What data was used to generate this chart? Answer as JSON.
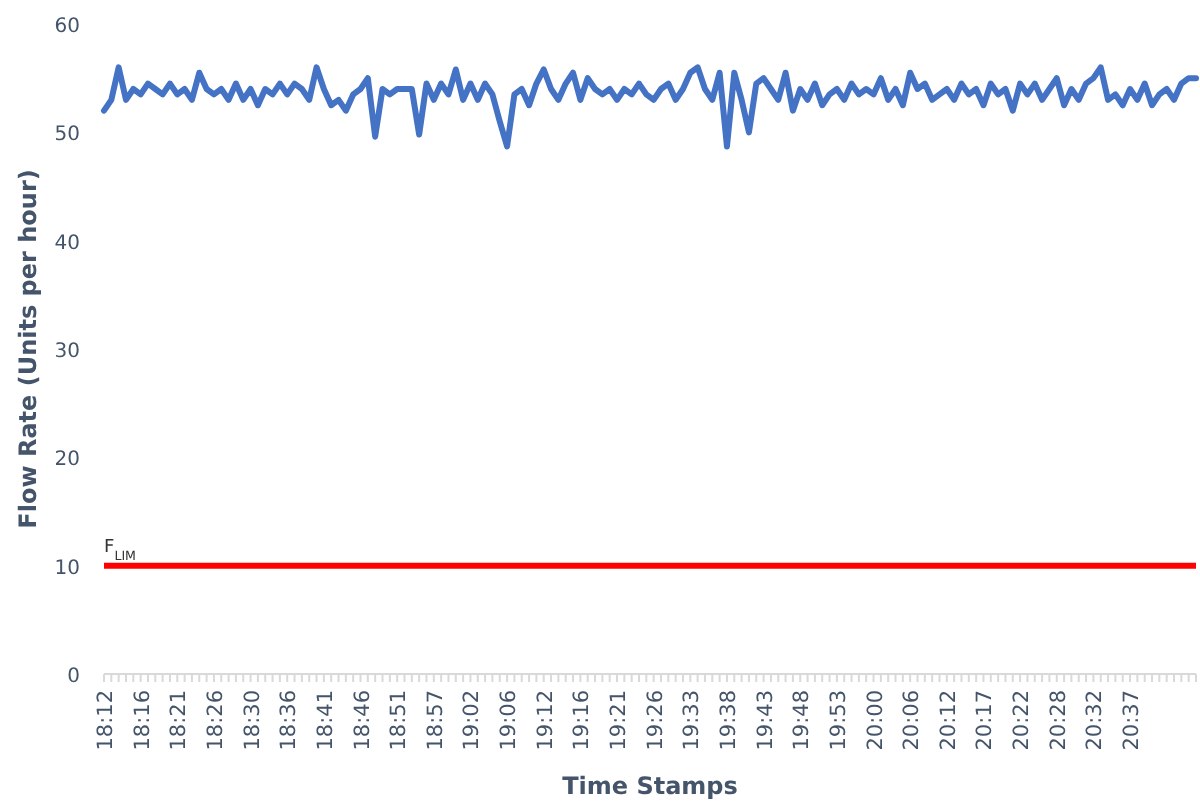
{
  "chart_data": {
    "type": "line",
    "xlabel": "Time Stamps",
    "ylabel": "Flow Rate (Units per hour)",
    "categories": [
      "18:12",
      null,
      null,
      null,
      null,
      "18:16",
      null,
      null,
      null,
      null,
      "18:21",
      null,
      null,
      null,
      null,
      "18:26",
      null,
      null,
      null,
      null,
      "18:30",
      null,
      null,
      null,
      null,
      "18:36",
      null,
      null,
      null,
      null,
      "18:41",
      null,
      null,
      null,
      null,
      "18:46",
      null,
      null,
      null,
      null,
      "18:51",
      null,
      null,
      null,
      null,
      "18:57",
      null,
      null,
      null,
      null,
      "19:02",
      null,
      null,
      null,
      null,
      "19:06",
      null,
      null,
      null,
      null,
      "19:12",
      null,
      null,
      null,
      null,
      "19:16",
      null,
      null,
      null,
      null,
      "19:21",
      null,
      null,
      null,
      null,
      "19:26",
      null,
      null,
      null,
      null,
      "19:33",
      null,
      null,
      null,
      null,
      "19:38",
      null,
      null,
      null,
      null,
      "19:43",
      null,
      null,
      null,
      null,
      "19:48",
      null,
      null,
      null,
      null,
      "19:53",
      null,
      null,
      null,
      null,
      "20:00",
      null,
      null,
      null,
      null,
      "20:06",
      null,
      null,
      null,
      null,
      "20:12",
      null,
      null,
      null,
      null,
      "20:17",
      null,
      null,
      null,
      null,
      "20:22",
      null,
      null,
      null,
      null,
      "20:28",
      null,
      null,
      null,
      null,
      "20:32",
      null,
      null,
      null,
      null,
      "20:37",
      null,
      null,
      null,
      null,
      null,
      null,
      null,
      null,
      null
    ],
    "series": [
      {
        "color": "#4472c4",
        "values": [
          52,
          53,
          56,
          53,
          54,
          53.5,
          54.5,
          54,
          53.5,
          54.5,
          53.5,
          54,
          53,
          55.5,
          54,
          53.5,
          54,
          53,
          54.5,
          53,
          54,
          52.5,
          54,
          53.5,
          54.5,
          53.5,
          54.5,
          54,
          53,
          56,
          54,
          52.5,
          53,
          52,
          53.5,
          54,
          55,
          49.6,
          54,
          53.5,
          54,
          54,
          54,
          49.8,
          54.5,
          53,
          54.5,
          53.5,
          55.8,
          53,
          54.5,
          53,
          54.5,
          53.5,
          51,
          48.7,
          53.5,
          54,
          52.5,
          54.5,
          55.8,
          54,
          53,
          54.5,
          55.5,
          53,
          55,
          54,
          53.5,
          54,
          53,
          54,
          53.5,
          54.5,
          53.5,
          53,
          54,
          54.5,
          53,
          54,
          55.5,
          56,
          54,
          53,
          55.5,
          48.7,
          55.5,
          53,
          50,
          54.5,
          55,
          54,
          53,
          55.5,
          52,
          54,
          53,
          54.5,
          52.5,
          53.5,
          54,
          53,
          54.5,
          53.5,
          54,
          53.5,
          55,
          53,
          54,
          52.5,
          55.5,
          54,
          54.5,
          53,
          53.5,
          54,
          53,
          54.5,
          53.5,
          54,
          52.5,
          54.5,
          53.5,
          54,
          52,
          54.5,
          53.5,
          54.5,
          53,
          54,
          55,
          52.5,
          54,
          53,
          54.5,
          55,
          56,
          53,
          53.5,
          52.5,
          54,
          53,
          54.5,
          52.5,
          53.5,
          54,
          53,
          54.5,
          55,
          55
        ]
      }
    ],
    "ylim": [
      0,
      60
    ],
    "yticks": [
      0,
      10,
      20,
      30,
      40,
      50,
      60
    ],
    "grid": false,
    "marker": "none",
    "line_style": "solid",
    "ref_lines": [
      {
        "axis": "y",
        "value": 10,
        "label": "F$_{LIM}$",
        "color": "#ff0000"
      }
    ]
  }
}
